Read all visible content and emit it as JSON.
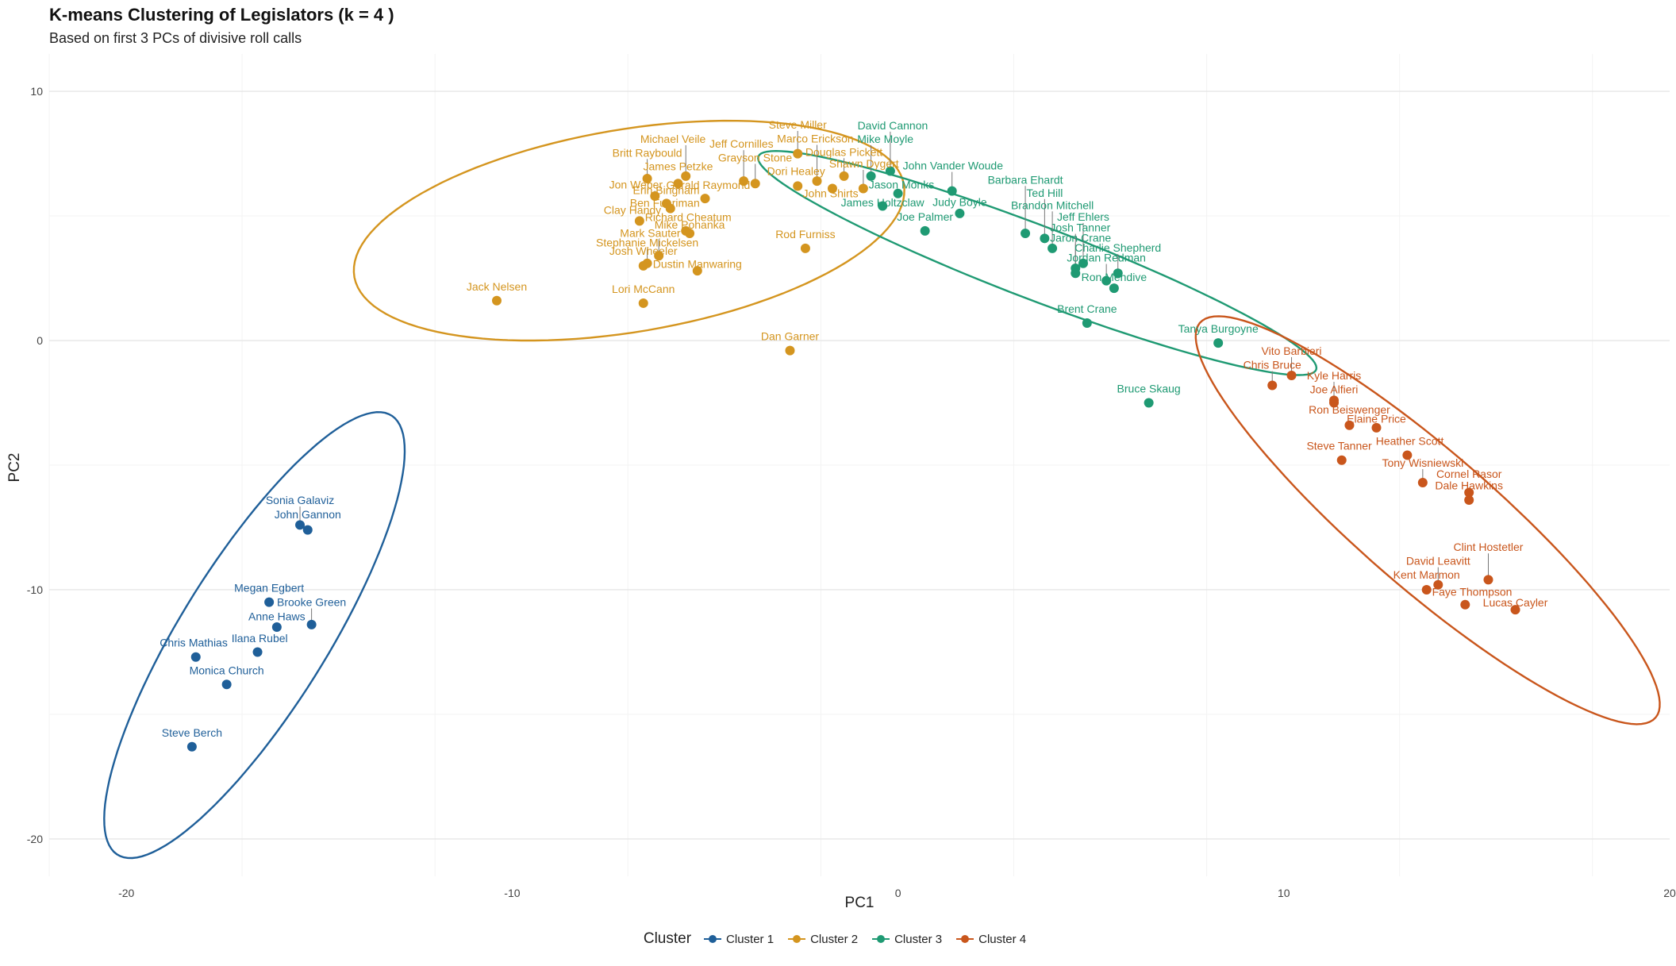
{
  "title": "K-means Clustering of Legislators (k = 4 )",
  "subtitle": "Based on first 3 PCs of divisive roll calls",
  "chart_data": {
    "type": "scatter",
    "xlabel": "PC1",
    "ylabel": "PC2",
    "xlim": [
      -22,
      20
    ],
    "ylim": [
      -21.5,
      11.5
    ],
    "x_ticks": [
      -20,
      -10,
      0,
      10,
      20
    ],
    "y_ticks": [
      -20,
      -10,
      0,
      10
    ],
    "grid": true,
    "legend_title": "Cluster",
    "legend_position": "bottom",
    "colors": {
      "1": "#1f5f99",
      "2": "#d4951f",
      "3": "#1f9a73",
      "4": "#c9561c"
    },
    "series": [
      {
        "name": "Cluster 1",
        "cluster": 1,
        "points": [
          {
            "label": "Sonia Galaviz",
            "x": -15.5,
            "y": -7.4
          },
          {
            "label": "John Gannon",
            "x": -15.3,
            "y": -7.6
          },
          {
            "label": "Megan Egbert",
            "x": -16.3,
            "y": -10.5
          },
          {
            "label": "Brooke Green",
            "x": -15.2,
            "y": -11.4
          },
          {
            "label": "Anne Haws",
            "x": -16.1,
            "y": -11.5
          },
          {
            "label": "Chris Mathias",
            "x": -18.2,
            "y": -12.7
          },
          {
            "label": "Ilana Rubel",
            "x": -16.6,
            "y": -12.5
          },
          {
            "label": "Monica Church",
            "x": -17.4,
            "y": -13.8
          },
          {
            "label": "Steve Berch",
            "x": -18.3,
            "y": -16.3
          }
        ]
      },
      {
        "name": "Cluster 2",
        "cluster": 2,
        "points": [
          {
            "label": "Steve Miller",
            "x": -2.6,
            "y": 7.5
          },
          {
            "label": "Douglas Pickett",
            "x": -1.4,
            "y": 6.6
          },
          {
            "label": "Jeff Cornilles",
            "x": -4.0,
            "y": 6.4
          },
          {
            "label": "Marco Erickson",
            "x": -2.1,
            "y": 6.4
          },
          {
            "label": "Britt Raybould",
            "x": -6.5,
            "y": 6.5
          },
          {
            "label": "Michael Veile",
            "x": -5.5,
            "y": 6.6
          },
          {
            "label": "James Petzke",
            "x": -5.7,
            "y": 6.3
          },
          {
            "label": "Jon Weber",
            "x": -6.3,
            "y": 5.8
          },
          {
            "label": "Grayson Stone",
            "x": -3.7,
            "y": 6.3
          },
          {
            "label": "John Shirts",
            "x": -1.7,
            "y": 6.1
          },
          {
            "label": "Erin Bingham",
            "x": -6.0,
            "y": 5.5
          },
          {
            "label": "Ben Fuhriman",
            "x": -5.9,
            "y": 5.3
          },
          {
            "label": "Gerald Raymond",
            "x": -5.0,
            "y": 5.7
          },
          {
            "label": "Dori Healey",
            "x": -2.6,
            "y": 6.2
          },
          {
            "label": "Shawn Dygert",
            "x": -0.9,
            "y": 6.1
          },
          {
            "label": "Clay Handy",
            "x": -6.7,
            "y": 4.8
          },
          {
            "label": "Richard Cheatum",
            "x": -5.5,
            "y": 4.4
          },
          {
            "label": "Mark Sauter",
            "x": -6.2,
            "y": 3.4
          },
          {
            "label": "Rod Furniss",
            "x": -2.4,
            "y": 3.7
          },
          {
            "label": "Stephanie Mickelsen",
            "x": -6.5,
            "y": 3.1
          },
          {
            "label": "Josh Wheeler",
            "x": -6.6,
            "y": 3.0
          },
          {
            "label": "Mike Pohanka",
            "x": -5.4,
            "y": 4.3
          },
          {
            "label": "Dustin Manwaring",
            "x": -5.2,
            "y": 2.8
          },
          {
            "label": "Lori McCann",
            "x": -6.6,
            "y": 1.5
          },
          {
            "label": "Jack Nelsen",
            "x": -10.4,
            "y": 1.6
          },
          {
            "label": "Dan Garner",
            "x": -2.8,
            "y": -0.4
          }
        ]
      },
      {
        "name": "Cluster 3",
        "cluster": 3,
        "points": [
          {
            "label": "David Cannon",
            "x": -0.2,
            "y": 6.8
          },
          {
            "label": "Mike Moyle",
            "x": -0.7,
            "y": 6.6
          },
          {
            "label": "John Vander Woude",
            "x": 1.4,
            "y": 6.0
          },
          {
            "label": "Jason Monks",
            "x": 0.0,
            "y": 5.9
          },
          {
            "label": "Judy Boyle",
            "x": 1.6,
            "y": 5.1
          },
          {
            "label": "Joe Palmer",
            "x": 0.7,
            "y": 4.4
          },
          {
            "label": "James Holtzclaw",
            "x": -0.4,
            "y": 5.4
          },
          {
            "label": "Ted Hill",
            "x": 3.8,
            "y": 4.1
          },
          {
            "label": "Barbara Ehardt",
            "x": 3.3,
            "y": 4.3
          },
          {
            "label": "Jeff Ehlers",
            "x": 4.8,
            "y": 3.1
          },
          {
            "label": "Brandon Mitchell",
            "x": 4.0,
            "y": 3.7
          },
          {
            "label": "Josh Tanner",
            "x": 4.6,
            "y": 2.9
          },
          {
            "label": "Charlie Shepherd",
            "x": 5.7,
            "y": 2.7
          },
          {
            "label": "Jaron Crane",
            "x": 4.6,
            "y": 2.7
          },
          {
            "label": "Jordan Redman",
            "x": 5.4,
            "y": 2.4
          },
          {
            "label": "Ron Mendive",
            "x": 5.6,
            "y": 2.1
          },
          {
            "label": "Brent Crane",
            "x": 4.9,
            "y": 0.7
          },
          {
            "label": "Tanya Burgoyne",
            "x": 8.3,
            "y": -0.1
          },
          {
            "label": "Bruce Skaug",
            "x": 6.5,
            "y": -2.5
          }
        ]
      },
      {
        "name": "Cluster 4",
        "cluster": 4,
        "points": [
          {
            "label": "Vito Barbieri",
            "x": 10.2,
            "y": -1.4
          },
          {
            "label": "Chris Bruce",
            "x": 9.7,
            "y": -1.8
          },
          {
            "label": "Joe Alfieri",
            "x": 11.3,
            "y": -2.5
          },
          {
            "label": "Kyle Harris",
            "x": 11.3,
            "y": -2.4
          },
          {
            "label": "Elaine Price",
            "x": 12.4,
            "y": -3.5
          },
          {
            "label": "Ron Beiswenger",
            "x": 11.7,
            "y": -3.4
          },
          {
            "label": "Steve Tanner",
            "x": 11.5,
            "y": -4.8
          },
          {
            "label": "Heather Scott",
            "x": 13.2,
            "y": -4.6
          },
          {
            "label": "Tony Wisniewski",
            "x": 13.6,
            "y": -5.7
          },
          {
            "label": "Cornel Rasor",
            "x": 14.8,
            "y": -6.1
          },
          {
            "label": "Dale Hawkins",
            "x": 14.8,
            "y": -6.4
          },
          {
            "label": "David Leavitt",
            "x": 14.0,
            "y": -9.8
          },
          {
            "label": "Kent Marmon",
            "x": 13.7,
            "y": -10.0
          },
          {
            "label": "Clint Hostetler",
            "x": 15.3,
            "y": -9.6
          },
          {
            "label": "Lucas Cayler",
            "x": 16.0,
            "y": -10.8
          },
          {
            "label": "Faye Thompson",
            "x": 14.7,
            "y": -10.6
          }
        ]
      }
    ],
    "ellipses": [
      {
        "cluster": 1,
        "cx": -16.68,
        "cy": -11.82,
        "rx": 9.54,
        "ry": 2.06,
        "angle": 1.208
      },
      {
        "cluster": 2,
        "cx": -6.97,
        "cy": 4.41,
        "rx": 7.39,
        "ry": 3.97,
        "angle": 0.3137
      },
      {
        "cluster": 3,
        "cx": 3.61,
        "cy": 3.11,
        "rx": 8.41,
        "ry": 1.36,
        "angle": -0.5426
      },
      {
        "cluster": 4,
        "cx": 13.73,
        "cy": -7.21,
        "rx": 9.93,
        "ry": 2.14,
        "angle": -0.9524
      }
    ]
  }
}
